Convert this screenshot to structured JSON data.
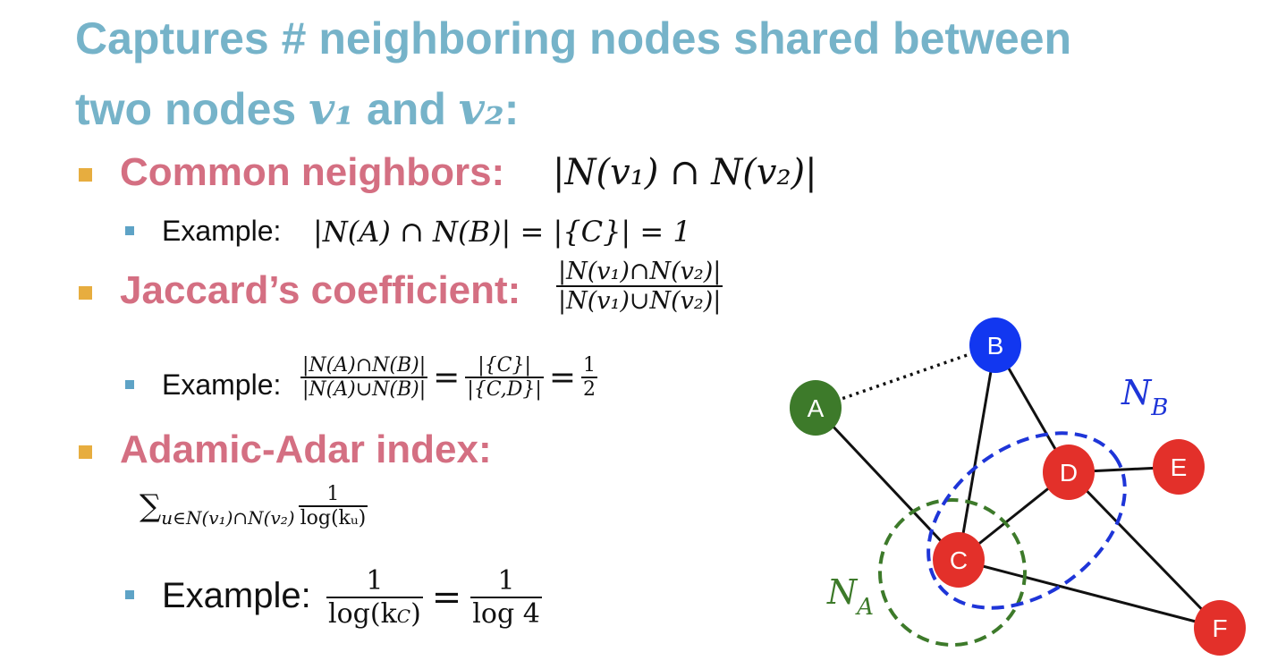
{
  "title": {
    "line1": "Captures # neighboring nodes shared between",
    "line2_prefix": "two nodes",
    "v1": "v₁",
    "and": "and",
    "v2": "v₂",
    "colon": ":"
  },
  "common": {
    "label": "Common neighbors:",
    "formula": "|N(v₁) ∩ N(v₂)|",
    "example_label": "Example:",
    "example_formula": "|N(A) ∩ N(B)| = |{C}| = 1"
  },
  "jaccard": {
    "label": "Jaccard’s coefficient:",
    "num": "|N(v₁)∩N(v₂)|",
    "den": "|N(v₁)∪N(v₂)|",
    "example_label": "Example:",
    "ex_num1": "|N(A)∩N(B)|",
    "ex_den1": "|N(A)∪N(B)|",
    "eq1": "=",
    "ex_num2": "|{C}|",
    "ex_den2": "|{C,D}|",
    "eq2": "=",
    "ex_num3": "1",
    "ex_den3": "2"
  },
  "adamic": {
    "label": "Adamic-Adar index:",
    "sum_symbol": "∑",
    "sum_sub": "u∈N(v₁)∩N(v₂)",
    "num": "1",
    "den": "log(kᵤ)",
    "example_label": "Example:",
    "ex_num1": "1",
    "ex_den1": "log(k",
    "ex_den1_sub": "C",
    "ex_den1_close": ")",
    "eq": "=",
    "ex_num2": "1",
    "ex_den2": "log 4"
  },
  "graph": {
    "nodes": [
      {
        "id": "A",
        "color": "#3d7a2a"
      },
      {
        "id": "B",
        "color": "#1237f0"
      },
      {
        "id": "C",
        "color": "#e3302a"
      },
      {
        "id": "D",
        "color": "#e3302a"
      },
      {
        "id": "E",
        "color": "#e3302a"
      },
      {
        "id": "F",
        "color": "#e3302a"
      }
    ],
    "edges": [
      {
        "from": "A",
        "to": "B",
        "style": "dotted"
      },
      {
        "from": "A",
        "to": "C",
        "style": "solid"
      },
      {
        "from": "B",
        "to": "C",
        "style": "solid"
      },
      {
        "from": "B",
        "to": "D",
        "style": "solid"
      },
      {
        "from": "C",
        "to": "D",
        "style": "solid"
      },
      {
        "from": "D",
        "to": "E",
        "style": "solid"
      },
      {
        "from": "D",
        "to": "F",
        "style": "solid"
      },
      {
        "from": "C",
        "to": "F",
        "style": "solid"
      }
    ],
    "labels": {
      "na_main": "N",
      "na_sub": "A",
      "nb_main": "N",
      "nb_sub": "B"
    },
    "colors": {
      "na": "#3d7a2a",
      "nb": "#1e35d8"
    }
  }
}
